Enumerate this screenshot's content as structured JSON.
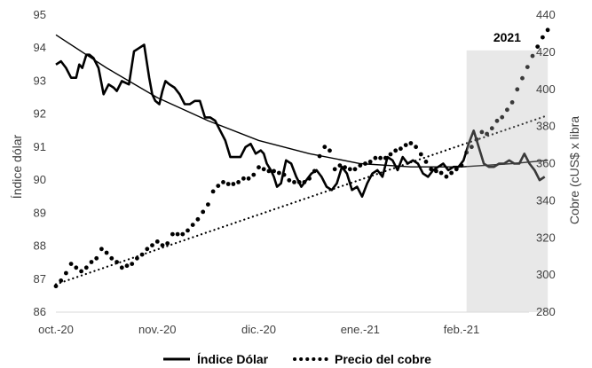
{
  "chart_data": {
    "type": "line",
    "x_labels": [
      "oct.-20",
      "nov.-20",
      "dic.-20",
      "ene.-21",
      "feb.-21"
    ],
    "ylabel_left": "Índice dólar",
    "ylabel_right": "Cobre (cUS$ x libra",
    "ylim_left": [
      86,
      95
    ],
    "yticks_left": [
      86,
      87,
      88,
      89,
      90,
      91,
      92,
      93,
      94,
      95
    ],
    "ylim_right": [
      280,
      440
    ],
    "yticks_right": [
      280,
      300,
      320,
      340,
      360,
      380,
      400,
      420,
      440
    ],
    "grid": false,
    "legend_position": "bottom",
    "highlight": {
      "label": "2021",
      "x_start": 4.05,
      "x_end": 4.85,
      "color": "#e8e8e8"
    },
    "series": [
      {
        "name": "Índice Dólar",
        "axis": "left",
        "style": "solid",
        "x": [
          0.0,
          0.05,
          0.1,
          0.15,
          0.2,
          0.23,
          0.26,
          0.3,
          0.33,
          0.37,
          0.42,
          0.47,
          0.52,
          0.57,
          0.6,
          0.65,
          0.72,
          0.77,
          0.82,
          0.87,
          0.92,
          0.95,
          0.98,
          1.02,
          1.05,
          1.08,
          1.12,
          1.17,
          1.22,
          1.27,
          1.32,
          1.37,
          1.42,
          1.47,
          1.52,
          1.57,
          1.62,
          1.67,
          1.72,
          1.77,
          1.82,
          1.87,
          1.92,
          1.97,
          2.02,
          2.05,
          2.08,
          2.12,
          2.15,
          2.18,
          2.22,
          2.27,
          2.32,
          2.37,
          2.42,
          2.47,
          2.52,
          2.57,
          2.62,
          2.67,
          2.72,
          2.77,
          2.82,
          2.87,
          2.92,
          2.97,
          3.02,
          3.07,
          3.12,
          3.17,
          3.22,
          3.27,
          3.32,
          3.37,
          3.42,
          3.47,
          3.52,
          3.57,
          3.62,
          3.67,
          3.72,
          3.77,
          3.82,
          3.87,
          3.92,
          3.97,
          4.02,
          4.07,
          4.12,
          4.17,
          4.22,
          4.27,
          4.32,
          4.37,
          4.42,
          4.47,
          4.52,
          4.57,
          4.62,
          4.67,
          4.72,
          4.77,
          4.82
        ],
        "values": [
          93.5,
          93.6,
          93.4,
          93.1,
          93.1,
          93.5,
          93.4,
          93.8,
          93.8,
          93.7,
          93.4,
          92.6,
          92.9,
          92.8,
          92.7,
          93.0,
          92.9,
          93.9,
          94.0,
          94.1,
          93.1,
          92.6,
          92.4,
          92.3,
          92.7,
          93.0,
          92.9,
          92.8,
          92.6,
          92.3,
          92.3,
          92.4,
          92.4,
          91.9,
          91.9,
          91.8,
          91.5,
          91.2,
          90.7,
          90.7,
          90.7,
          91.0,
          91.1,
          90.8,
          90.9,
          90.8,
          90.5,
          90.3,
          90.1,
          89.8,
          89.9,
          90.6,
          90.5,
          90.1,
          89.8,
          90.0,
          90.2,
          90.3,
          90.1,
          89.8,
          89.7,
          89.9,
          90.4,
          90.2,
          89.7,
          89.8,
          89.5,
          89.9,
          90.2,
          90.3,
          90.1,
          90.7,
          90.6,
          90.3,
          90.7,
          90.5,
          90.6,
          90.5,
          90.2,
          90.1,
          90.3,
          90.4,
          90.5,
          90.3,
          90.4,
          90.4,
          90.6,
          91.1,
          91.5,
          91.0,
          90.5,
          90.4,
          90.4,
          90.5,
          90.5,
          90.6,
          90.5,
          90.5,
          90.8,
          90.5,
          90.3,
          90.0,
          90.1
        ]
      },
      {
        "name": "Precio del cobre",
        "axis": "right",
        "style": "dotted",
        "x": [
          0.0,
          0.05,
          0.1,
          0.15,
          0.2,
          0.25,
          0.3,
          0.35,
          0.4,
          0.45,
          0.5,
          0.55,
          0.6,
          0.65,
          0.7,
          0.75,
          0.8,
          0.85,
          0.9,
          0.95,
          1.0,
          1.05,
          1.1,
          1.15,
          1.2,
          1.25,
          1.3,
          1.35,
          1.4,
          1.45,
          1.5,
          1.55,
          1.6,
          1.65,
          1.7,
          1.75,
          1.8,
          1.85,
          1.9,
          1.95,
          2.0,
          2.05,
          2.1,
          2.15,
          2.2,
          2.25,
          2.3,
          2.35,
          2.4,
          2.45,
          2.5,
          2.55,
          2.6,
          2.65,
          2.7,
          2.75,
          2.8,
          2.85,
          2.9,
          2.95,
          3.0,
          3.05,
          3.1,
          3.15,
          3.2,
          3.25,
          3.3,
          3.35,
          3.4,
          3.45,
          3.5,
          3.55,
          3.6,
          3.65,
          3.7,
          3.75,
          3.8,
          3.85,
          3.9,
          3.95,
          4.0,
          4.05,
          4.1,
          4.15,
          4.2,
          4.25,
          4.3,
          4.35,
          4.4,
          4.45,
          4.5,
          4.55,
          4.6,
          4.65,
          4.7,
          4.75,
          4.8,
          4.85
        ],
        "values": [
          294,
          297,
          301,
          306,
          304,
          302,
          304,
          307,
          309,
          314,
          312,
          309,
          307,
          304,
          305,
          306,
          309,
          311,
          314,
          316,
          318,
          316,
          317,
          322,
          322,
          322,
          324,
          327,
          330,
          334,
          338,
          345,
          348,
          350,
          349,
          349,
          350,
          352,
          352,
          354,
          358,
          357,
          356,
          356,
          355,
          354,
          351,
          350,
          350,
          350,
          352,
          356,
          364,
          369,
          367,
          357,
          359,
          358,
          357,
          357,
          359,
          360,
          361,
          363,
          363,
          363,
          365,
          367,
          368,
          370,
          371,
          369,
          365,
          361,
          357,
          356,
          355,
          353,
          355,
          357,
          359,
          366,
          369,
          373,
          377,
          376,
          379,
          383,
          385,
          389,
          393,
          400,
          406,
          412,
          418,
          423,
          428,
          432
        ]
      }
    ],
    "trendlines": [
      {
        "series": "Índice Dólar",
        "axis": "left",
        "style": "solid",
        "kind": "polynomial",
        "x": [
          0.0,
          0.5,
          1.0,
          1.5,
          2.0,
          2.5,
          3.0,
          3.5,
          4.0,
          4.5,
          4.85
        ],
        "values": [
          94.4,
          93.4,
          92.5,
          91.8,
          91.2,
          90.8,
          90.5,
          90.4,
          90.4,
          90.5,
          90.6
        ]
      },
      {
        "series": "Precio del cobre",
        "axis": "right",
        "style": "dotted",
        "kind": "linear",
        "x": [
          0.0,
          4.85
        ],
        "values": [
          295,
          386
        ]
      }
    ]
  }
}
